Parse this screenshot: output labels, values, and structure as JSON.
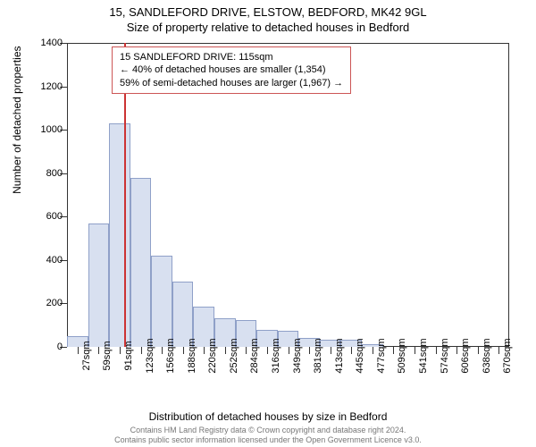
{
  "chart": {
    "type": "histogram",
    "title_main": "15, SANDLEFORD DRIVE, ELSTOW, BEDFORD, MK42 9GL",
    "title_sub": "Size of property relative to detached houses in Bedford",
    "x_axis_title": "Distribution of detached houses by size in Bedford",
    "y_axis_title": "Number of detached properties",
    "background_color": "#ffffff",
    "bar_fill": "#d8e0f0",
    "bar_border": "#8fa0c8",
    "axis_color": "#333333",
    "vline_color": "#cc3333",
    "vline_position_bin": 2.7,
    "ylim": [
      0,
      1400
    ],
    "ytick_step": 200,
    "y_ticks": [
      0,
      200,
      400,
      600,
      800,
      1000,
      1200,
      1400
    ],
    "x_labels": [
      "27sqm",
      "59sqm",
      "91sqm",
      "123sqm",
      "156sqm",
      "188sqm",
      "220sqm",
      "252sqm",
      "284sqm",
      "316sqm",
      "349sqm",
      "381sqm",
      "413sqm",
      "445sqm",
      "477sqm",
      "509sqm",
      "541sqm",
      "574sqm",
      "606sqm",
      "638sqm",
      "670sqm"
    ],
    "values": [
      50,
      570,
      1030,
      780,
      420,
      300,
      185,
      130,
      125,
      80,
      75,
      40,
      35,
      35,
      12,
      0,
      0,
      0,
      0,
      0,
      0
    ],
    "bar_count": 21,
    "title_fontsize": 13,
    "label_fontsize": 11,
    "axis_title_fontsize": 12,
    "annotation": {
      "line1": "15 SANDLEFORD DRIVE: 115sqm",
      "line2": "← 40% of detached houses are smaller (1,354)",
      "line3": "59% of semi-detached houses are larger (1,967) →",
      "border_color": "#cc5555",
      "bg_color": "#ffffff",
      "fontsize": 11
    },
    "footer": {
      "line1": "Contains HM Land Registry data © Crown copyright and database right 2024.",
      "line2": "Contains public sector information licensed under the Open Government Licence v3.0.",
      "color": "#777777",
      "fontsize": 9
    }
  }
}
